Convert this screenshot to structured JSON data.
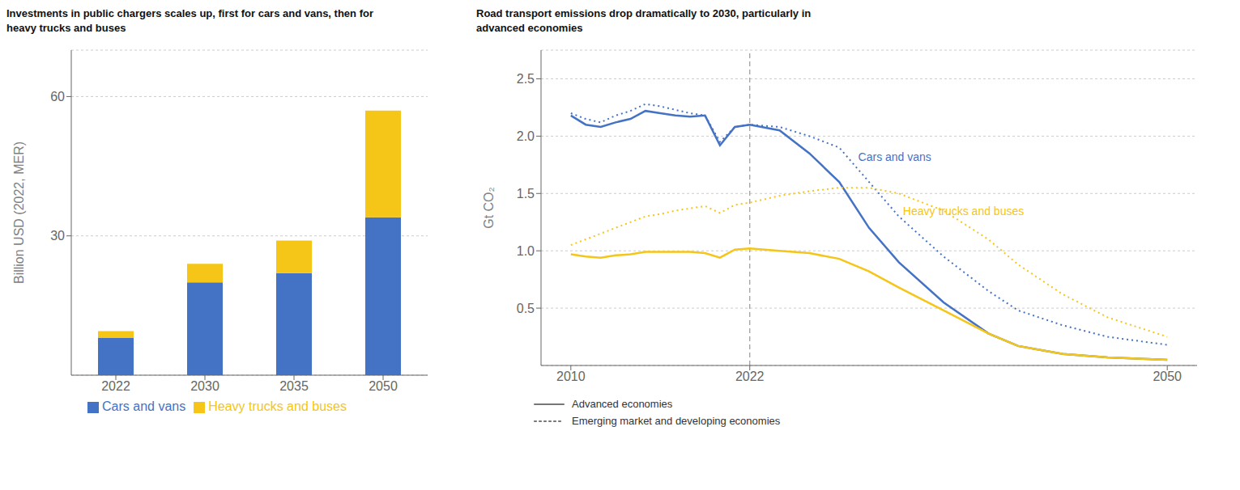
{
  "chart_data": [
    {
      "type": "bar",
      "title": "Investments in public chargers scales up, first for cars and vans, then for\nheavy trucks and buses",
      "categories": [
        "2022",
        "2030",
        "2035",
        "2050"
      ],
      "series": [
        {
          "name": "Cars and vans",
          "color": "#4472C4",
          "values": [
            8.0,
            20.0,
            22.0,
            34.0
          ]
        },
        {
          "name": "Heavy trucks and buses",
          "color": "#F5C518",
          "values": [
            1.5,
            4.0,
            7.0,
            23.0
          ]
        }
      ],
      "stacked": true,
      "ylabel": "Billion USD (2022, MER)",
      "ylim": [
        0,
        70
      ],
      "yticks": [
        30,
        60
      ],
      "grid": true,
      "legend": "bottom"
    },
    {
      "type": "line",
      "title": "Road transport emissions drop dramatically to 2030, particularly in\nadvanced economies",
      "x": [
        2010,
        2011,
        2012,
        2013,
        2014,
        2015,
        2016,
        2017,
        2018,
        2019,
        2020,
        2021,
        2022,
        2024,
        2026,
        2028,
        2030,
        2032,
        2035,
        2038,
        2040,
        2043,
        2046,
        2050
      ],
      "series": [
        {
          "name": "Advanced economies",
          "color": "#4472C4",
          "line_style": "solid",
          "values": [
            2.18,
            2.1,
            2.08,
            2.12,
            2.15,
            2.22,
            2.2,
            2.18,
            2.17,
            2.18,
            1.92,
            2.08,
            2.1,
            2.05,
            1.85,
            1.6,
            1.2,
            0.9,
            0.55,
            0.28,
            0.17,
            0.1,
            0.07,
            0.05
          ]
        },
        {
          "name": "Emerging market and developing economies",
          "color": "#4472C4",
          "line_style": "dotted",
          "values": [
            2.2,
            2.15,
            2.12,
            2.18,
            2.22,
            2.28,
            2.26,
            2.23,
            2.2,
            2.18,
            1.95,
            2.08,
            2.1,
            2.08,
            2.0,
            1.9,
            1.6,
            1.3,
            0.95,
            0.65,
            0.48,
            0.35,
            0.25,
            0.18
          ]
        },
        {
          "name": "Advanced economies",
          "color": "#F5C518",
          "line_style": "solid",
          "values": [
            0.97,
            0.95,
            0.94,
            0.96,
            0.97,
            0.99,
            0.99,
            0.99,
            0.99,
            0.98,
            0.94,
            1.01,
            1.02,
            1.0,
            0.98,
            0.93,
            0.82,
            0.68,
            0.48,
            0.28,
            0.17,
            0.1,
            0.07,
            0.05
          ]
        },
        {
          "name": "Emerging market and developing economies",
          "color": "#F5C518",
          "line_style": "dotted",
          "values": [
            1.05,
            1.1,
            1.15,
            1.2,
            1.25,
            1.3,
            1.32,
            1.35,
            1.37,
            1.39,
            1.33,
            1.4,
            1.42,
            1.48,
            1.52,
            1.55,
            1.55,
            1.5,
            1.35,
            1.1,
            0.88,
            0.62,
            0.42,
            0.25
          ]
        }
      ],
      "reference_x": 2022,
      "annotations": [
        {
          "text": "Cars and vans",
          "x": 2029,
          "y": 1.82,
          "color": "#4472C4"
        },
        {
          "text": "Heavy trucks and buses",
          "x": 2032,
          "y": 1.35,
          "color": "#F5C518"
        }
      ],
      "ylabel": "Gt CO₂",
      "xlim": [
        2008,
        2052
      ],
      "xticks": [
        2010,
        2022,
        2050
      ],
      "ylim": [
        0,
        2.75
      ],
      "yticks": [
        0.5,
        {
          "value": 1,
          "label": "1.0"
        },
        1.5,
        {
          "value": 2,
          "label": "2.0"
        },
        2.5
      ],
      "grid": true,
      "legend": "bottom-left"
    }
  ]
}
